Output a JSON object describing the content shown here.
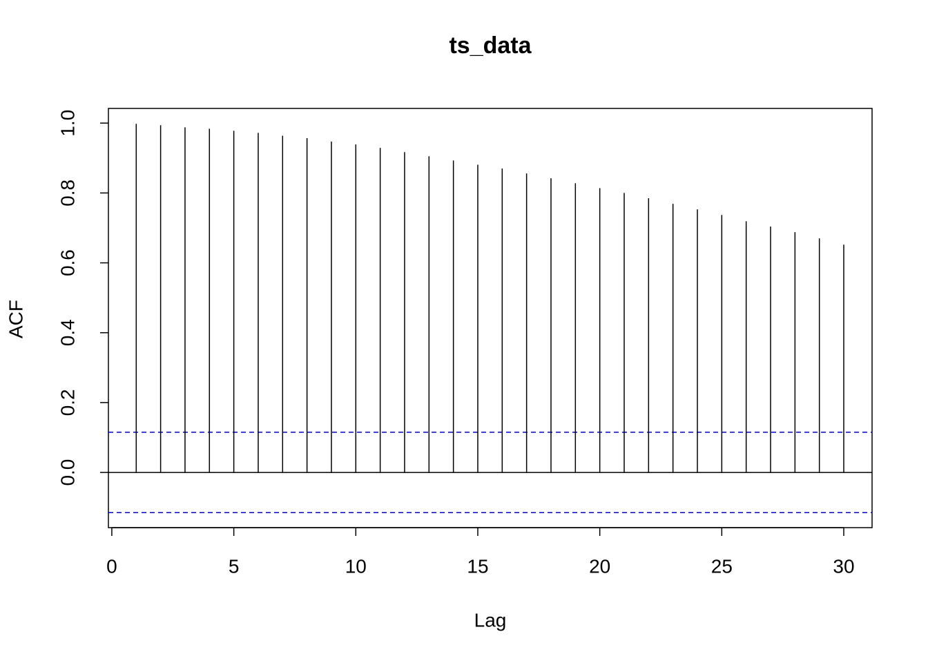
{
  "chart_data": {
    "type": "acf",
    "title": "ts_data",
    "x_label": "Lag",
    "y_label": "ACF",
    "x": [
      1,
      2,
      3,
      4,
      5,
      6,
      7,
      8,
      9,
      10,
      11,
      12,
      13,
      14,
      15,
      16,
      17,
      18,
      19,
      20,
      21,
      22,
      23,
      24,
      25,
      26,
      27,
      28,
      29,
      30
    ],
    "values": [
      0.998,
      0.994,
      0.988,
      0.984,
      0.978,
      0.972,
      0.964,
      0.957,
      0.947,
      0.939,
      0.929,
      0.917,
      0.905,
      0.893,
      0.881,
      0.87,
      0.856,
      0.842,
      0.828,
      0.814,
      0.8,
      0.785,
      0.769,
      0.753,
      0.737,
      0.719,
      0.704,
      0.688,
      0.67,
      0.652
    ],
    "color": "#000000",
    "confidence_bounds": [
      0.115,
      -0.115
    ],
    "confidence_color": "#0000cd",
    "xlim": [
      -0.14,
      31.16
    ],
    "ylim": [
      -0.158,
      1.042
    ],
    "xticks": [
      0,
      5,
      10,
      15,
      20,
      25,
      30
    ],
    "yticks": [
      {
        "value": 0,
        "label": "0.0"
      },
      0.2,
      0.4,
      0.6,
      0.8,
      {
        "value": 1,
        "label": "1.0"
      }
    ]
  }
}
